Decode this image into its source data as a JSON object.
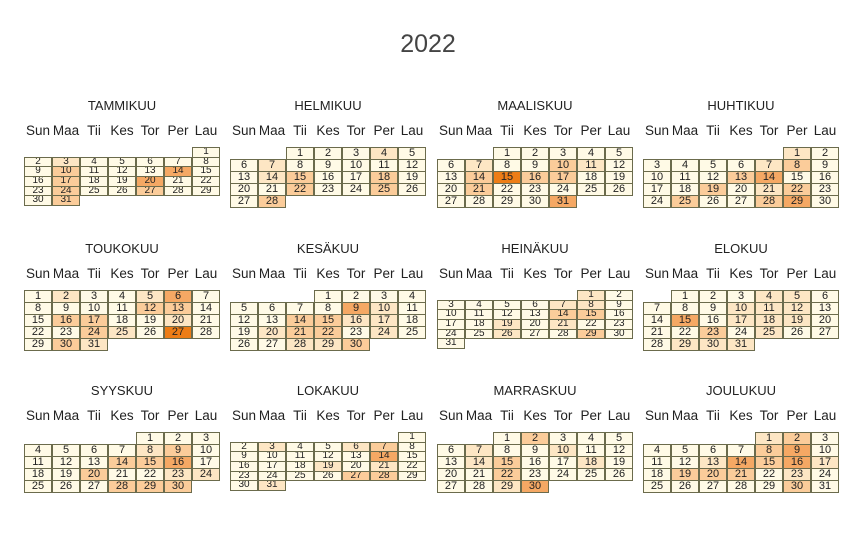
{
  "title": "2022",
  "weekdays": [
    "Sun",
    "Maa",
    "Tii",
    "Kes",
    "Tor",
    "Per",
    "Lau"
  ],
  "chart_data": {
    "type": "heatmap",
    "title": "2022",
    "colors": {
      "low": "#fffae6",
      "mid": "#fcd4a0",
      "high": "#ed7d16",
      "border": "#6b6b4c"
    },
    "months": [
      {
        "name": "TAMMIKUU",
        "first_col": 6,
        "days": 31,
        "rows": 6,
        "shade": {
          "3": 1,
          "10": 2,
          "14": 3,
          "17": 2,
          "20": 3,
          "24": 2,
          "27": 2,
          "31": 2
        }
      },
      {
        "name": "HELMIKUU",
        "first_col": 2,
        "days": 28,
        "rows": 5,
        "shade": {
          "4": 1,
          "7": 1,
          "14": 1,
          "15": 2,
          "18": 2,
          "22": 2,
          "25": 2,
          "28": 2
        }
      },
      {
        "name": "MAALISKUU",
        "first_col": 2,
        "days": 31,
        "rows": 5,
        "shade": {
          "7": 1,
          "10": 2,
          "11": 1,
          "14": 2,
          "15": 4,
          "16": 2,
          "17": 2,
          "21": 2,
          "31": 3
        }
      },
      {
        "name": "HUHTIKUU",
        "first_col": 5,
        "days": 30,
        "rows": 5,
        "shade": {
          "1": 1,
          "7": 1,
          "8": 2,
          "13": 2,
          "14": 3,
          "19": 2,
          "21": 1,
          "22": 2,
          "25": 2,
          "28": 2,
          "29": 3
        }
      },
      {
        "name": "TOUKOKUU",
        "first_col": 0,
        "days": 31,
        "rows": 5,
        "shade": {
          "2": 1,
          "5": 1,
          "6": 3,
          "12": 2,
          "13": 2,
          "16": 2,
          "17": 2,
          "20": 1,
          "24": 2,
          "25": 1,
          "27": 4,
          "30": 2,
          "31": 1
        }
      },
      {
        "name": "KESÄKUU",
        "first_col": 3,
        "days": 30,
        "rows": 5,
        "shade": {
          "9": 3,
          "10": 1,
          "14": 2,
          "15": 2,
          "16": 1,
          "17": 1,
          "20": 1,
          "21": 2,
          "22": 2,
          "24": 1,
          "28": 1,
          "29": 1,
          "30": 2
        }
      },
      {
        "name": "HEINÄKUU",
        "first_col": 5,
        "days": 31,
        "rows": 6,
        "shade": {
          "1": 1,
          "7": 1,
          "8": 1,
          "14": 2,
          "15": 2,
          "19": 1,
          "21": 1,
          "26": 1,
          "29": 2
        }
      },
      {
        "name": "ELOKUU",
        "first_col": 1,
        "days": 31,
        "rows": 5,
        "shade": {
          "4": 1,
          "5": 1,
          "10": 1,
          "11": 1,
          "12": 1,
          "15": 3,
          "17": 1,
          "18": 1,
          "19": 1,
          "23": 2,
          "25": 1,
          "29": 1,
          "30": 1,
          "31": 1
        }
      },
      {
        "name": "SYYSKUU",
        "first_col": 4,
        "days": 30,
        "rows": 5,
        "shade": {
          "8": 1,
          "9": 2,
          "14": 2,
          "15": 2,
          "16": 3,
          "20": 2,
          "23": 1,
          "24": 1,
          "28": 2,
          "29": 2,
          "30": 2
        }
      },
      {
        "name": "LOKAKUU",
        "first_col": 6,
        "days": 31,
        "rows": 6,
        "shade": {
          "3": 1,
          "6": 1,
          "7": 2,
          "14": 3,
          "19": 1,
          "21": 1,
          "27": 2,
          "28": 2,
          "31": 1
        }
      },
      {
        "name": "MARRASKUU",
        "first_col": 2,
        "days": 30,
        "rows": 5,
        "shade": {
          "2": 2,
          "7": 1,
          "10": 1,
          "14": 1,
          "15": 2,
          "18": 1,
          "22": 2,
          "29": 1,
          "30": 3
        }
      },
      {
        "name": "JOULUKUU",
        "first_col": 4,
        "days": 31,
        "rows": 5,
        "shade": {
          "1": 1,
          "2": 2,
          "8": 2,
          "9": 3,
          "13": 1,
          "14": 3,
          "15": 2,
          "16": 3,
          "17": 1,
          "19": 2,
          "20": 2,
          "21": 2,
          "23": 1,
          "30": 2
        }
      }
    ]
  }
}
